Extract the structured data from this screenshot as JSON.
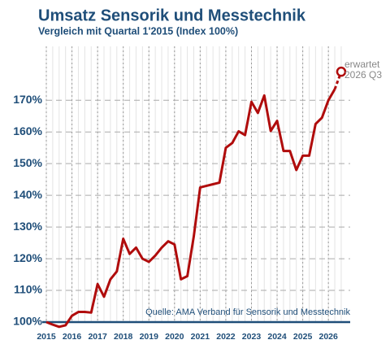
{
  "chart_data": {
    "type": "line",
    "title": "Umsatz Sensorik und Messtechnik",
    "subtitle": "Vergleich mit Quartal 1'2015 (Index 100%)",
    "source": "Quelle: AMA Verband für Sensorik und Messtechnik",
    "annotation": [
      "erwartet",
      "2026 Q3"
    ],
    "x": [
      2015,
      2015.25,
      2015.5,
      2015.75,
      2016,
      2016.25,
      2016.5,
      2016.75,
      2017,
      2017.25,
      2017.5,
      2017.75,
      2018,
      2018.25,
      2018.5,
      2018.75,
      2019,
      2019.25,
      2019.5,
      2019.75,
      2020,
      2020.25,
      2020.5,
      2020.75,
      2021,
      2021.25,
      2021.5,
      2021.75,
      2022,
      2022.25,
      2022.5,
      2022.75,
      2023,
      2023.25,
      2023.5,
      2023.75,
      2024,
      2024.25,
      2024.5,
      2024.75,
      2025,
      2025.25,
      2025.5,
      2025.75,
      2026,
      2026.25,
      2026.5
    ],
    "series": [
      {
        "color": "#b00c0c",
        "values": [
          100,
          99.2,
          98.5,
          99,
          102,
          103.2,
          103.2,
          103,
          112,
          108,
          113.5,
          116,
          126.3,
          121.5,
          123.5,
          120,
          119,
          121,
          123.5,
          125.5,
          124.5,
          113.5,
          114.5,
          127,
          142.5,
          143,
          143.5,
          144,
          155,
          156.5,
          160.2,
          159,
          169.5,
          166,
          171.5,
          160.3,
          163.5,
          154,
          154,
          148,
          152.5,
          152.5,
          162.5,
          164.5,
          170,
          173.5,
          null
        ]
      },
      {
        "color": "#b00c0c",
        "dashed": true,
        "marker": "open-circle",
        "values": [
          null,
          null,
          null,
          null,
          null,
          null,
          null,
          null,
          null,
          null,
          null,
          null,
          null,
          null,
          null,
          null,
          null,
          null,
          null,
          null,
          null,
          null,
          null,
          null,
          null,
          null,
          null,
          null,
          null,
          null,
          null,
          null,
          null,
          null,
          null,
          null,
          null,
          null,
          null,
          null,
          null,
          null,
          null,
          null,
          null,
          173.5,
          179
        ]
      }
    ],
    "xlim": [
      2015,
      2026.85
    ],
    "xticks": [
      2015,
      2016,
      2017,
      2018,
      2019,
      2020,
      2021,
      2022,
      2023,
      2024,
      2025,
      2026
    ],
    "ylim": [
      100,
      187
    ],
    "yticks": [
      {
        "value": 100,
        "label": "100%"
      },
      {
        "value": 110,
        "label": "110%"
      },
      {
        "value": 120,
        "label": "120%"
      },
      {
        "value": 130,
        "label": "130%"
      },
      {
        "value": 140,
        "label": "140%"
      },
      {
        "value": 150,
        "label": "150%"
      },
      {
        "value": 160,
        "label": "160%"
      },
      {
        "value": 170,
        "label": "170%"
      }
    ],
    "grid": true
  }
}
